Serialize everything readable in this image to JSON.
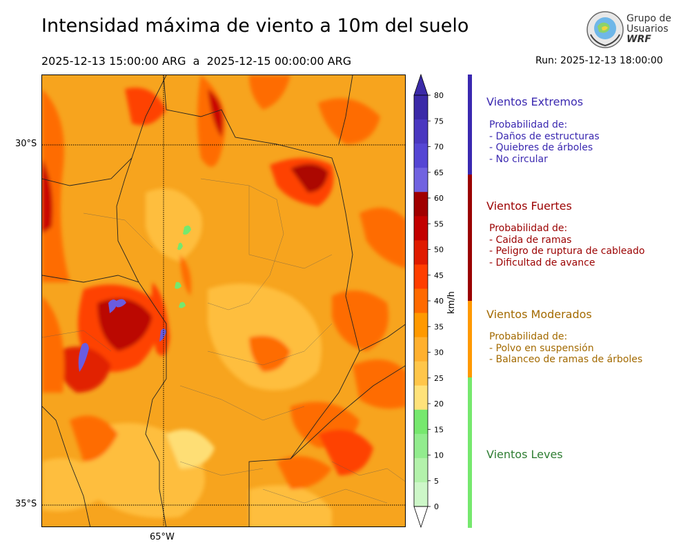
{
  "title": "Intensidad máxima de viento a 10m del suelo",
  "period": "2025-12-13 15:00:00 ARG  a  2025-12-15 00:00:00 ARG",
  "run": "Run: 2025-12-13 18:00:00",
  "logo": {
    "line1": "Grupo de",
    "line2": "Usuarios",
    "line3": "WRF"
  },
  "axes": {
    "lat_labels": [
      "30°S",
      "35°S"
    ],
    "lon_labels": [
      "65°W"
    ]
  },
  "colorbar": {
    "units": "km/h",
    "ticks": [
      "0",
      "5",
      "10",
      "15",
      "20",
      "25",
      "30",
      "35",
      "40",
      "45",
      "50",
      "55",
      "60",
      "65",
      "70",
      "75",
      "80"
    ],
    "colors": [
      "#e6fbe6",
      "#cdf7c8",
      "#b3f2ab",
      "#92ec8e",
      "#76e86e",
      "#ffe27a",
      "#ffc64a",
      "#ffb02e",
      "#ff9900",
      "#ff6a00",
      "#ff3e00",
      "#e01b00",
      "#c20000",
      "#a00000",
      "#7163e0",
      "#5546d4",
      "#4a38c0",
      "#3b2aa8"
    ],
    "extend_low": "#ffffff",
    "extend_high": "#3b2aa8"
  },
  "categories": [
    {
      "title": "Vientos Extremos",
      "color": "#3a28b0",
      "lines": [
        "Probabilidad de:",
        "- Daños de estructuras",
        "- Quiebres de árboles",
        "- No circular"
      ]
    },
    {
      "title": "Vientos Fuertes",
      "color": "#9b0000",
      "lines": [
        "Probabilidad de:",
        "- Caida de ramas",
        "- Peligro de ruptura de cableado",
        "- Dificultad de avance"
      ]
    },
    {
      "title": "Vientos Moderados",
      "color": "#a36a00",
      "bar": "#ff9900",
      "lines": [
        "Probabilidad de:",
        "- Polvo en suspensión",
        "- Balanceo de ramas de árboles"
      ]
    },
    {
      "title": "Vientos Leves",
      "color": "#2e7d32",
      "bar": "#76e86e",
      "lines": []
    }
  ]
}
